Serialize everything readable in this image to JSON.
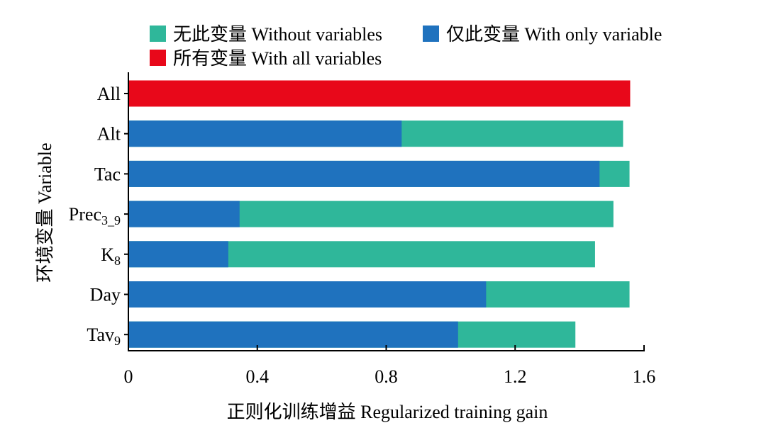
{
  "chart_data": {
    "type": "bar",
    "orientation": "horizontal",
    "stacked": false,
    "xlabel": "正则化训练增益 Regularized training gain",
    "ylabel": "环境变量 Variable",
    "xlim": [
      0,
      1.6
    ],
    "xticks": [
      "0",
      "0.4",
      "0.8",
      "1.2",
      "1.6"
    ],
    "xtick_values": [
      0,
      0.4,
      0.8,
      1.2,
      1.6
    ],
    "grid": false,
    "legend_position": "top",
    "categories": [
      {
        "main": "All",
        "sub": ""
      },
      {
        "main": "Alt",
        "sub": ""
      },
      {
        "main": "Tac",
        "sub": ""
      },
      {
        "main": "Prec",
        "sub": "3_9"
      },
      {
        "main": "K",
        "sub": "8"
      },
      {
        "main": "Day",
        "sub": ""
      },
      {
        "main": "Tav",
        "sub": "9"
      }
    ],
    "series": [
      {
        "name": "无此变量 Without variables",
        "color": "#2fb79a",
        "values": [
          null,
          1.535,
          1.555,
          1.505,
          1.448,
          1.555,
          1.387
        ]
      },
      {
        "name": "仅此变量 With only variable",
        "color": "#1f72be",
        "values": [
          null,
          0.848,
          1.462,
          0.345,
          0.31,
          1.11,
          1.023
        ]
      },
      {
        "name": "所有变量 With all variables",
        "color": "#e8081a",
        "values": [
          1.557,
          null,
          null,
          null,
          null,
          null,
          null
        ]
      }
    ]
  }
}
